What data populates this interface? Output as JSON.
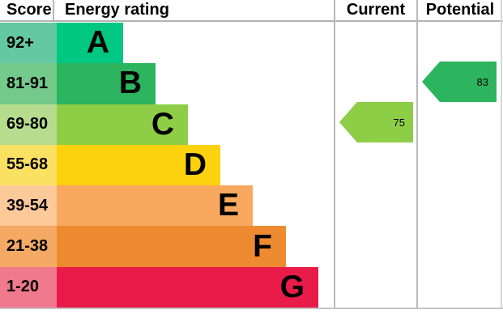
{
  "header": {
    "score": "Score",
    "energy_rating": "Energy rating",
    "current": "Current",
    "potential": "Potential"
  },
  "chart_data": {
    "type": "bar",
    "title": "Energy rating",
    "orientation": "horizontal",
    "columns": [
      "Score",
      "Energy rating",
      "Current",
      "Potential"
    ],
    "bands": [
      {
        "letter": "A",
        "score_range": "92+",
        "color": "#00c781",
        "score_bg": "#64c8a3"
      },
      {
        "letter": "B",
        "score_range": "81-91",
        "color": "#2cb45f",
        "score_bg": "#73ca8b"
      },
      {
        "letter": "C",
        "score_range": "69-80",
        "color": "#8dce46",
        "score_bg": "#b5dd8d"
      },
      {
        "letter": "D",
        "score_range": "55-68",
        "color": "#fcd10d",
        "score_bg": "#fbe162"
      },
      {
        "letter": "E",
        "score_range": "39-54",
        "color": "#f9a95f",
        "score_bg": "#fcc999"
      },
      {
        "letter": "F",
        "score_range": "21-38",
        "color": "#ee8b30",
        "score_bg": "#f4aa64"
      },
      {
        "letter": "G",
        "score_range": "1-20",
        "color": "#e91b49",
        "score_bg": "#f0798d"
      }
    ],
    "current": {
      "value": "75",
      "band": "C",
      "color": "#8dce46"
    },
    "potential": {
      "value": "83",
      "band": "B",
      "color": "#2cb45f"
    }
  }
}
